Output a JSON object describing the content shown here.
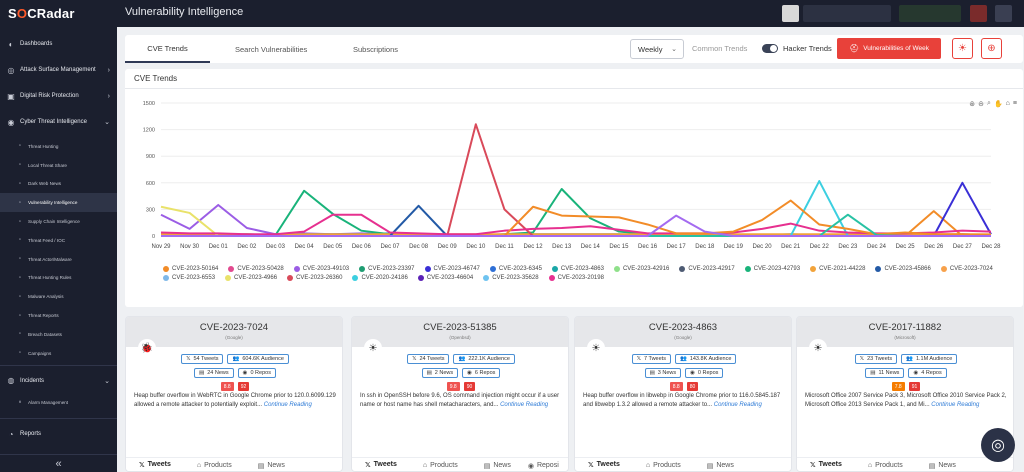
{
  "brand": {
    "name_a": "S",
    "name_o": "O",
    "name_b": "CRadar"
  },
  "topbar": {
    "title": "Vulnerability Intelligence"
  },
  "sidebar": {
    "main_items": [
      {
        "label": "Dashboards",
        "icon": "dashboard-icon"
      },
      {
        "label": "Attack Surface Management",
        "icon": "globe-icon"
      },
      {
        "label": "Digital Risk Protection",
        "icon": "shield-icon"
      },
      {
        "label": "Cyber Threat Intelligence",
        "icon": "radar-icon"
      }
    ],
    "sub_items": [
      {
        "label": "Threat Hunting"
      },
      {
        "label": "Local Threat Share"
      },
      {
        "label": "Dark Web News"
      },
      {
        "label": "Vulnerability Intelligence",
        "active": true
      },
      {
        "label": "Supply Chain Intelligence"
      },
      {
        "label": "Threat Feed / IOC"
      },
      {
        "label": "Threat Actor/Malware"
      },
      {
        "label": "Threat Hunting Rules"
      },
      {
        "label": "Malware Analysis"
      },
      {
        "label": "Threat Reports"
      },
      {
        "label": "Breach Datasets"
      },
      {
        "label": "Campaigns"
      }
    ],
    "incidents": "Incidents",
    "alarm": "Alarm Management",
    "reports": "Reports"
  },
  "tabs": {
    "cve_trends": "CVE Trends",
    "search": "Search Vulnerabilities",
    "subscriptions": "Subscriptions"
  },
  "controls": {
    "period": "Weekly",
    "common": "Common Trends",
    "hacker": "Hacker Trends",
    "vuln_week": "Vulnerabilities of Week"
  },
  "chart_data": {
    "type": "line",
    "title": "CVE Trends",
    "x": [
      "Nov 29",
      "Nov 30",
      "Dec 01",
      "Dec 02",
      "Dec 03",
      "Dec 04",
      "Dec 05",
      "Dec 06",
      "Dec 07",
      "Dec 08",
      "Dec 09",
      "Dec 10",
      "Dec 11",
      "Dec 12",
      "Dec 13",
      "Dec 14",
      "Dec 15",
      "Dec 16",
      "Dec 17",
      "Dec 18",
      "Dec 19",
      "Dec 20",
      "Dec 21",
      "Dec 22",
      "Dec 23",
      "Dec 24",
      "Dec 25",
      "Dec 26",
      "Dec 27",
      "Dec 28"
    ],
    "yticks": [
      "0",
      "300",
      "600",
      "900",
      "1200",
      "1500"
    ],
    "ylim": [
      0,
      1500
    ],
    "series": [
      {
        "name": "CVE-2023-50164",
        "color": "#f28c28",
        "values": [
          0,
          0,
          0,
          0,
          0,
          0,
          0,
          0,
          0,
          0,
          0,
          0,
          0,
          0,
          0,
          0,
          0,
          0,
          0,
          0,
          0,
          0,
          0,
          0,
          0,
          0,
          0,
          280,
          0,
          0
        ]
      },
      {
        "name": "CVE-2023-50428",
        "color": "#e24a8f",
        "values": [
          0,
          0,
          0,
          0,
          0,
          0,
          0,
          0,
          0,
          0,
          0,
          0,
          0,
          0,
          0,
          0,
          0,
          0,
          0,
          0,
          0,
          0,
          0,
          0,
          0,
          0,
          0,
          0,
          0,
          0
        ]
      },
      {
        "name": "CVE-2023-49103",
        "color": "#9b5de5",
        "values": [
          240,
          80,
          350,
          90,
          20,
          30,
          20,
          30,
          20,
          10,
          5,
          5,
          5,
          10,
          5,
          5,
          5,
          5,
          5,
          5,
          5,
          5,
          5,
          5,
          5,
          5,
          5,
          5,
          5,
          5
        ]
      },
      {
        "name": "CVE-2023-23397",
        "color": "#1f9d72",
        "values": [
          0,
          0,
          0,
          0,
          0,
          0,
          0,
          0,
          0,
          0,
          0,
          0,
          0,
          0,
          0,
          0,
          0,
          0,
          0,
          0,
          0,
          0,
          0,
          0,
          0,
          0,
          0,
          0,
          0,
          0
        ]
      },
      {
        "name": "CVE-2023-46747",
        "color": "#3a2fd6",
        "values": [
          0,
          0,
          0,
          0,
          0,
          0,
          0,
          0,
          0,
          0,
          0,
          0,
          0,
          0,
          0,
          0,
          0,
          0,
          0,
          0,
          0,
          0,
          0,
          0,
          0,
          0,
          0,
          0,
          600,
          20
        ]
      },
      {
        "name": "CVE-2023-6345",
        "color": "#2e6fd6",
        "values": [
          10,
          10,
          20,
          10,
          10,
          20,
          20,
          20,
          30,
          20,
          10,
          10,
          20,
          20,
          20,
          20,
          20,
          10,
          10,
          10,
          10,
          10,
          20,
          10,
          10,
          10,
          10,
          10,
          20,
          10
        ]
      },
      {
        "name": "CVE-2023-4863",
        "color": "#1aa7a7",
        "values": [
          0,
          0,
          0,
          0,
          0,
          0,
          0,
          0,
          0,
          0,
          0,
          0,
          0,
          0,
          0,
          0,
          0,
          0,
          0,
          0,
          0,
          0,
          0,
          0,
          0,
          0,
          0,
          0,
          0,
          0
        ]
      },
      {
        "name": "CVE-2023-42916",
        "color": "#8fe08a",
        "values": [
          0,
          0,
          0,
          0,
          0,
          0,
          0,
          0,
          0,
          0,
          0,
          0,
          0,
          0,
          0,
          0,
          0,
          0,
          0,
          0,
          0,
          0,
          0,
          0,
          0,
          0,
          0,
          0,
          0,
          0
        ]
      },
      {
        "name": "CVE-2023-42917",
        "color": "#4e5b73",
        "values": [
          0,
          0,
          0,
          0,
          0,
          0,
          0,
          0,
          0,
          0,
          0,
          0,
          0,
          0,
          0,
          0,
          0,
          0,
          0,
          0,
          0,
          0,
          0,
          0,
          0,
          0,
          0,
          0,
          0,
          0
        ]
      },
      {
        "name": "CVE-2023-42793",
        "color": "#19b37a",
        "values": [
          30,
          20,
          10,
          20,
          10,
          510,
          250,
          60,
          20,
          10,
          0,
          0,
          20,
          40,
          530,
          200,
          50,
          20,
          0,
          20,
          10,
          0,
          0,
          0,
          10,
          0,
          20,
          0,
          0,
          0
        ]
      },
      {
        "name": "CVE-2021-44228",
        "color": "#f2a33a",
        "values": [
          20,
          20,
          10,
          20,
          10,
          20,
          20,
          20,
          20,
          20,
          20,
          20,
          20,
          20,
          20,
          20,
          20,
          20,
          20,
          20,
          20,
          20,
          20,
          20,
          20,
          20,
          20,
          20,
          20,
          20
        ]
      },
      {
        "name": "CVE-2023-45866",
        "color": "#235aa6",
        "values": [
          0,
          0,
          0,
          0,
          0,
          0,
          0,
          0,
          0,
          340,
          0,
          0,
          0,
          0,
          0,
          0,
          0,
          0,
          0,
          0,
          0,
          0,
          0,
          0,
          0,
          0,
          0,
          0,
          0,
          0
        ]
      },
      {
        "name": "CVE-2023-7024",
        "color": "#f7a14b",
        "values": [
          0,
          0,
          0,
          0,
          0,
          0,
          0,
          0,
          0,
          0,
          0,
          0,
          0,
          0,
          0,
          0,
          0,
          0,
          0,
          0,
          0,
          0,
          0,
          0,
          0,
          0,
          0,
          0,
          0,
          0
        ]
      },
      {
        "name": "CVE-2023-6553",
        "color": "#7fb8e8",
        "values": [
          0,
          0,
          0,
          0,
          0,
          0,
          0,
          0,
          0,
          0,
          0,
          0,
          0,
          0,
          0,
          0,
          0,
          0,
          0,
          0,
          0,
          0,
          0,
          0,
          0,
          0,
          0,
          0,
          0,
          0
        ]
      },
      {
        "name": "CVE-2023-4966",
        "color": "#e9e26a",
        "values": [
          330,
          260,
          0,
          0,
          0,
          0,
          0,
          0,
          0,
          0,
          0,
          0,
          0,
          0,
          0,
          0,
          0,
          0,
          0,
          0,
          0,
          0,
          0,
          0,
          0,
          0,
          0,
          0,
          0,
          0
        ]
      },
      {
        "name": "CVE-2023-26360",
        "color": "#d94a5a",
        "values": [
          0,
          0,
          0,
          0,
          0,
          0,
          0,
          0,
          0,
          0,
          0,
          1260,
          300,
          0,
          0,
          0,
          0,
          0,
          0,
          0,
          0,
          0,
          0,
          0,
          0,
          0,
          0,
          0,
          0,
          0
        ]
      },
      {
        "name": "CVE-2020-24186",
        "color": "#3ccfe0",
        "values": [
          0,
          0,
          0,
          0,
          0,
          0,
          0,
          0,
          0,
          0,
          0,
          0,
          0,
          0,
          0,
          0,
          0,
          0,
          0,
          0,
          0,
          0,
          0,
          620,
          0,
          0,
          0,
          0,
          0,
          0
        ]
      },
      {
        "name": "CVE-2023-46604",
        "color": "#5b21b6",
        "values": [
          0,
          0,
          0,
          0,
          0,
          0,
          0,
          0,
          0,
          0,
          0,
          0,
          0,
          0,
          0,
          0,
          0,
          0,
          0,
          0,
          0,
          0,
          0,
          0,
          0,
          0,
          0,
          0,
          0,
          0
        ]
      },
      {
        "name": "CVE-2023-35628",
        "color": "#6ec3f0",
        "values": [
          0,
          0,
          0,
          0,
          0,
          0,
          0,
          0,
          0,
          0,
          0,
          0,
          0,
          0,
          0,
          0,
          0,
          0,
          0,
          0,
          0,
          0,
          0,
          0,
          0,
          0,
          0,
          0,
          0,
          0
        ]
      },
      {
        "name": "CVE-2023-20198",
        "color": "#e6308f",
        "values": [
          40,
          30,
          30,
          20,
          20,
          50,
          240,
          240,
          40,
          30,
          20,
          20,
          60,
          80,
          90,
          110,
          70,
          30,
          30,
          30,
          40,
          80,
          140,
          60,
          40,
          30,
          30,
          40,
          60,
          50
        ]
      }
    ],
    "extra_lines": [
      {
        "color": "#f28c28",
        "values": [
          0,
          0,
          0,
          0,
          0,
          0,
          0,
          0,
          0,
          0,
          0,
          0,
          0,
          330,
          230,
          220,
          210,
          130,
          30,
          30,
          50,
          180,
          400,
          130,
          80,
          20,
          40,
          20,
          20,
          10
        ]
      },
      {
        "color": "#28c2a4",
        "values": [
          0,
          0,
          0,
          0,
          0,
          0,
          0,
          0,
          0,
          0,
          0,
          0,
          0,
          0,
          0,
          0,
          0,
          0,
          0,
          0,
          0,
          0,
          0,
          0,
          240,
          10,
          0,
          0,
          0,
          0
        ]
      },
      {
        "color": "#a46bf0",
        "values": [
          0,
          0,
          0,
          0,
          0,
          0,
          0,
          0,
          0,
          0,
          0,
          0,
          0,
          0,
          0,
          0,
          0,
          0,
          230,
          50,
          0,
          0,
          0,
          0,
          0,
          0,
          0,
          0,
          0,
          0
        ]
      }
    ]
  },
  "cards": [
    {
      "cve": "CVE-2023-7024",
      "vendor": "(Google)",
      "tweets": "54 Tweets",
      "audience": "604.6K Audience",
      "news": "24 News",
      "repos": "0 Repos",
      "s1": "8.8",
      "s2": "92",
      "c1": "#ef5350",
      "c2": "#e53935",
      "desc": "Heap buffer overflow in WebRTC in Google Chrome prior to 120.0.6099.129 allowed a remote attacker to potentially exploit...",
      "more": "Continue Reading"
    },
    {
      "cve": "CVE-2023-51385",
      "vendor": "(Openbsd)",
      "tweets": "24 Tweets",
      "audience": "222.1K Audience",
      "news": "2 News",
      "repos": "6 Repos",
      "s1": "9.8",
      "s2": "90",
      "c1": "#ef5350",
      "c2": "#e53935",
      "desc": "In ssh in OpenSSH before 9.6, OS command injection might occur if a user name or host name has shell metacharacters, and...",
      "more": "Continue Reading"
    },
    {
      "cve": "CVE-2023-4863",
      "vendor": "(Google)",
      "tweets": "7 Tweets",
      "audience": "143.8K Audience",
      "news": "3 News",
      "repos": "0 Repos",
      "s1": "8.8",
      "s2": "80",
      "c1": "#ef5350",
      "c2": "#e53935",
      "desc": "Heap buffer overflow in libwebp in Google Chrome prior to 116.0.5845.187 and libwebp 1.3.2 allowed a remote attacker to...",
      "more": "Continue Reading"
    },
    {
      "cve": "CVE-2017-11882",
      "vendor": "(Microsoft)",
      "tweets": "23 Tweets",
      "audience": "1.1M Audience",
      "news": "11 News",
      "repos": "4 Repos",
      "s1": "7.8",
      "s2": "91",
      "c1": "#f57c00",
      "c2": "#e53935",
      "desc": "Microsoft Office 2007 Service Pack 3, Microsoft Office 2010 Service Pack 2, Microsoft Office 2013 Service Pack 1, and Mi...",
      "more": "Continue Reading"
    }
  ],
  "card_tabs": {
    "tweets": "Tweets",
    "products": "Products",
    "news": "News",
    "repos": "Reposi"
  }
}
